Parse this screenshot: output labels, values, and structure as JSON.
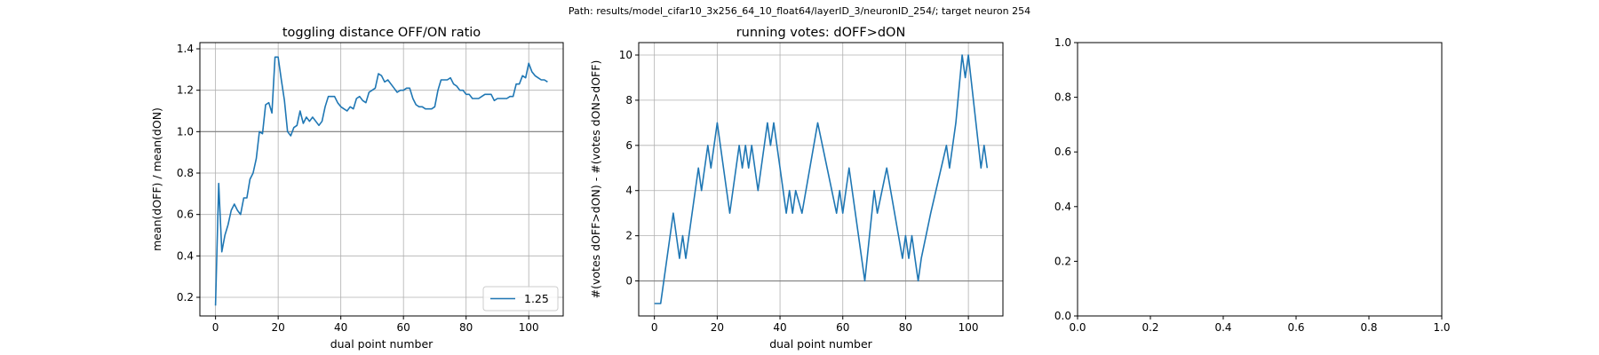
{
  "figure": {
    "suptitle": "Path: results/model_cifar10_3x256_64_10_float64/layerID_3/neuronID_254/; target neuron 254"
  },
  "chart_data": [
    {
      "type": "line",
      "title": "toggling distance OFF/ON ratio",
      "xlabel": "dual point number",
      "ylabel": "mean(dOFF) / mean(dON)",
      "xlim": [
        -5,
        111
      ],
      "ylim": [
        0.11,
        1.43
      ],
      "xticks": [
        0,
        20,
        40,
        60,
        80,
        100
      ],
      "yticks": [
        0.2,
        0.4,
        0.6,
        0.8,
        1.0,
        1.2,
        1.4
      ],
      "grid": true,
      "reference_line_y": 1.0,
      "legend": {
        "position": "lower-right",
        "entries": [
          "1.25"
        ]
      },
      "colors": {
        "line": "#1f77b4",
        "reference": "#808080",
        "grid": "#b0b0b0"
      },
      "series": [
        {
          "name": "1.25",
          "x": [
            0,
            1,
            2,
            3,
            4,
            5,
            6,
            7,
            8,
            9,
            10,
            11,
            12,
            13,
            14,
            15,
            16,
            17,
            18,
            19,
            20,
            21,
            22,
            23,
            24,
            25,
            26,
            27,
            28,
            29,
            30,
            31,
            32,
            33,
            34,
            35,
            36,
            37,
            38,
            39,
            40,
            41,
            42,
            43,
            44,
            45,
            46,
            47,
            48,
            49,
            50,
            51,
            52,
            53,
            54,
            55,
            56,
            57,
            58,
            59,
            60,
            61,
            62,
            63,
            64,
            65,
            66,
            67,
            68,
            69,
            70,
            71,
            72,
            73,
            74,
            75,
            76,
            77,
            78,
            79,
            80,
            81,
            82,
            83,
            84,
            85,
            86,
            87,
            88,
            89,
            90,
            91,
            92,
            93,
            94,
            95,
            96,
            97,
            98,
            99,
            100,
            101,
            102,
            103,
            104,
            105,
            106
          ],
          "y": [
            0.16,
            0.75,
            0.42,
            0.5,
            0.55,
            0.62,
            0.65,
            0.62,
            0.6,
            0.68,
            0.68,
            0.77,
            0.8,
            0.87,
            1.0,
            0.99,
            1.13,
            1.14,
            1.09,
            1.36,
            1.36,
            1.25,
            1.15,
            1.0,
            0.98,
            1.02,
            1.03,
            1.1,
            1.04,
            1.07,
            1.05,
            1.07,
            1.05,
            1.03,
            1.05,
            1.12,
            1.17,
            1.17,
            1.17,
            1.14,
            1.12,
            1.11,
            1.1,
            1.12,
            1.11,
            1.16,
            1.17,
            1.15,
            1.14,
            1.19,
            1.2,
            1.21,
            1.28,
            1.27,
            1.24,
            1.25,
            1.23,
            1.21,
            1.19,
            1.2,
            1.2,
            1.21,
            1.21,
            1.16,
            1.13,
            1.12,
            1.12,
            1.11,
            1.11,
            1.11,
            1.12,
            1.2,
            1.25,
            1.25,
            1.25,
            1.26,
            1.23,
            1.22,
            1.2,
            1.2,
            1.18,
            1.18,
            1.16,
            1.16,
            1.16,
            1.17,
            1.18,
            1.18,
            1.18,
            1.15,
            1.16,
            1.16,
            1.16,
            1.16,
            1.17,
            1.17,
            1.23,
            1.23,
            1.27,
            1.26,
            1.33,
            1.29,
            1.27,
            1.26,
            1.25,
            1.25,
            1.24
          ]
        }
      ]
    },
    {
      "type": "line",
      "title": "running votes: dOFF>dON",
      "xlabel": "dual point number",
      "ylabel": "#(votes dOFF>dON) - #(votes dON>dOFF)",
      "xlim": [
        -5,
        111
      ],
      "ylim": [
        -1.55,
        10.55
      ],
      "xticks": [
        0,
        20,
        40,
        60,
        80,
        100
      ],
      "yticks": [
        0,
        2,
        4,
        6,
        8,
        10
      ],
      "grid": true,
      "reference_line_y": 0,
      "colors": {
        "line": "#1f77b4",
        "reference": "#808080",
        "grid": "#b0b0b0"
      },
      "series": [
        {
          "x": [
            0,
            2,
            6,
            8,
            9,
            10,
            14,
            15,
            17,
            18,
            20,
            24,
            27,
            28,
            29,
            30,
            31,
            33,
            36,
            37,
            38,
            40,
            42,
            43,
            44,
            45,
            47,
            52,
            55,
            58,
            59,
            60,
            62,
            67,
            70,
            71,
            74,
            79,
            80,
            81,
            82,
            83,
            84,
            85,
            88,
            93,
            94,
            96,
            98,
            99,
            100,
            104,
            105,
            106
          ],
          "y": [
            -1,
            -1,
            3,
            1,
            2,
            1,
            5,
            4,
            6,
            5,
            7,
            3,
            6,
            5,
            6,
            5,
            6,
            4,
            7,
            6,
            7,
            5,
            3,
            4,
            3,
            4,
            3,
            7,
            5,
            3,
            4,
            3,
            5,
            0,
            4,
            3,
            5,
            1,
            2,
            1,
            2,
            1,
            0,
            1,
            3,
            6,
            5,
            7,
            10,
            9,
            10,
            5,
            6,
            5
          ]
        }
      ]
    },
    {
      "type": "line",
      "title": "",
      "xlabel": "",
      "ylabel": "",
      "xlim": [
        0,
        1
      ],
      "ylim": [
        0,
        1
      ],
      "xticks": [
        0.0,
        0.2,
        0.4,
        0.6,
        0.8,
        1.0
      ],
      "yticks": [
        0.0,
        0.2,
        0.4,
        0.6,
        0.8,
        1.0
      ],
      "xtick_labels": [
        "0.0",
        "0.2",
        "0.4",
        "0.6",
        "0.8",
        "1.0"
      ],
      "ytick_labels": [
        "0.0",
        "0.2",
        "0.4",
        "0.6",
        "0.8",
        "1.0"
      ],
      "grid": false,
      "series": []
    }
  ]
}
